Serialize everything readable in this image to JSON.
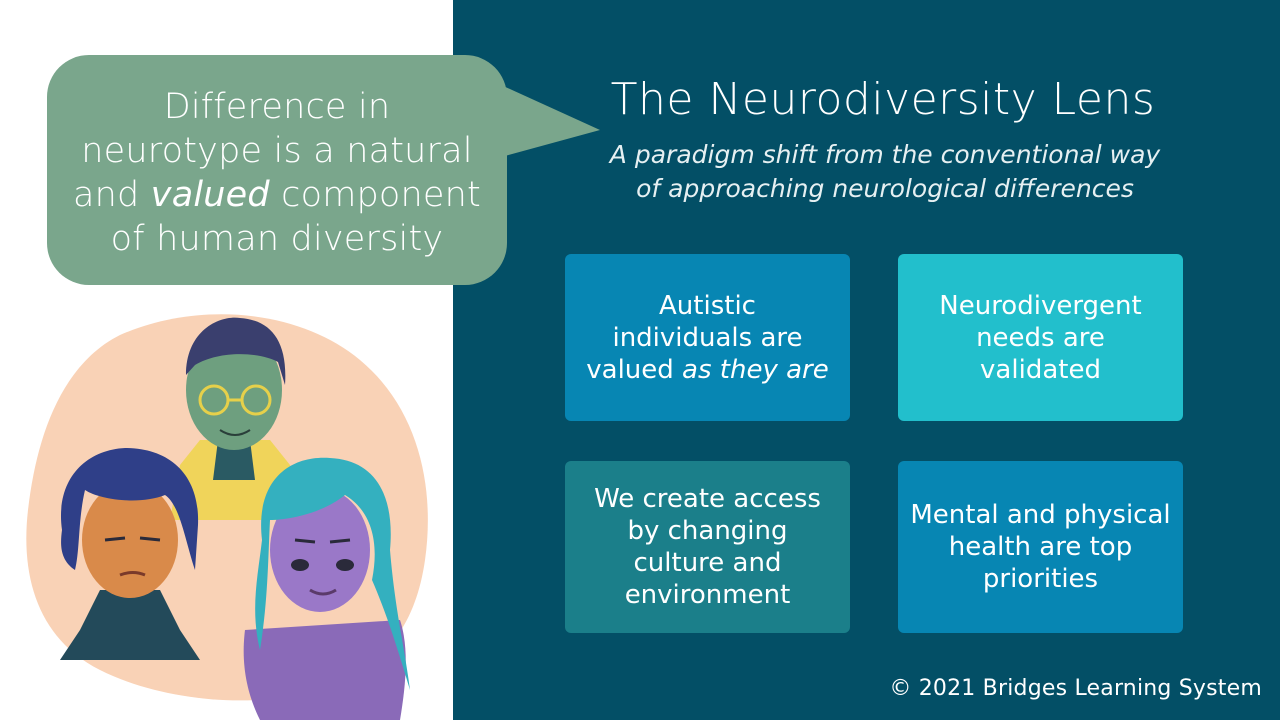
{
  "bubble": {
    "line1": "Difference in",
    "line2": "neurotype is a natural",
    "line3_pre": "and ",
    "line3_em": "valued",
    "line3_post": " component",
    "line4": "of human diversity"
  },
  "header": {
    "title": "The Neurodiversity Lens",
    "subtitle_line1": "A paradigm shift from the conventional way",
    "subtitle_line2": "of approaching neurological differences"
  },
  "cards": [
    {
      "line1": "Autistic",
      "line2": "individuals are",
      "line3_pre": "valued ",
      "line3_em": "as they are"
    },
    {
      "line1": "Neurodivergent",
      "line2": "needs are",
      "line3": "validated"
    },
    {
      "line1": "We create access",
      "line2": "by changing",
      "line3": "culture and",
      "line4": "environment"
    },
    {
      "line1": "Mental and physical",
      "line2": "health are top",
      "line3": "priorities"
    }
  ],
  "footer": {
    "copyright": "© 2021 Bridges Learning System"
  },
  "colors": {
    "panel": "#034f66",
    "bubble": "#7aa68c",
    "card_blue": "#0786b3",
    "card_cyan": "#22bfcc",
    "card_teal": "#1b7f8a",
    "blob": "#f9d2b6"
  }
}
